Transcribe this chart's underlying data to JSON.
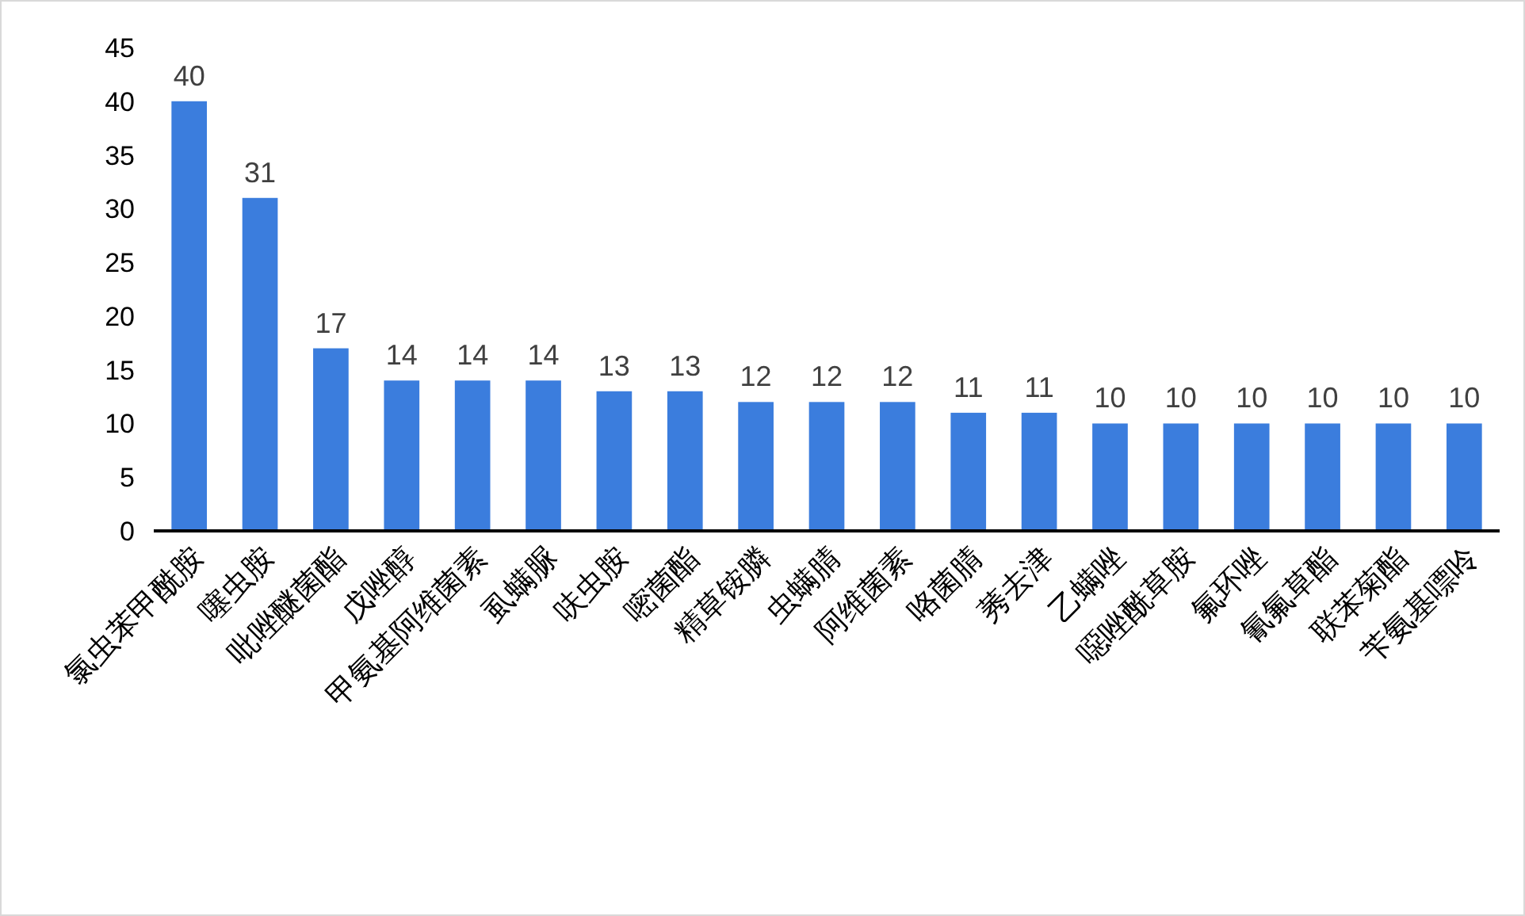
{
  "chart_data": {
    "type": "bar",
    "categories": [
      "氯虫苯甲酰胺",
      "噻虫胺",
      "吡唑醚菌酯",
      "戊唑醇",
      "甲氨基阿维菌素",
      "虱螨脲",
      "呋虫胺",
      "嘧菌酯",
      "精草铵膦",
      "虫螨腈",
      "阿维菌素",
      "咯菌腈",
      "莠去津",
      "乙螨唑",
      "噁唑酰草胺",
      "氟环唑",
      "氰氟草酯",
      "联苯菊酯",
      "苄氨基嘌呤"
    ],
    "values": [
      40,
      31,
      17,
      14,
      14,
      14,
      13,
      13,
      12,
      12,
      12,
      11,
      11,
      10,
      10,
      10,
      10,
      10,
      10
    ],
    "color": "#3b7ddd",
    "ylim": [
      0,
      45
    ],
    "yticks": [
      0,
      5,
      10,
      15,
      20,
      25,
      30,
      35,
      40,
      45
    ],
    "grid": false,
    "data_labels": true
  }
}
